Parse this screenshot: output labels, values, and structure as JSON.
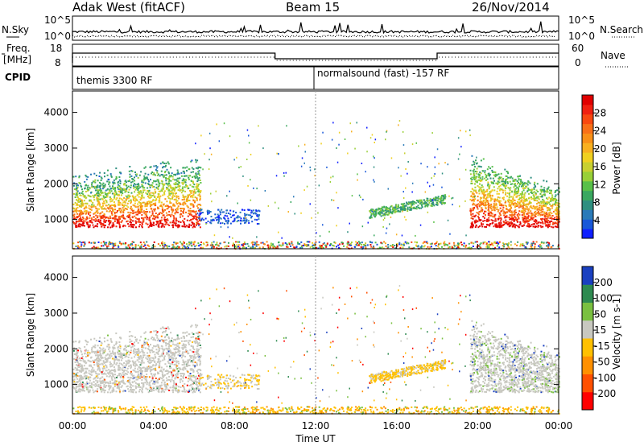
{
  "header": {
    "station": "Adak West (fitACF)",
    "beam": "Beam 15",
    "date": "26/Nov/2014"
  },
  "noise_panel": {
    "left_label": "N.Sky",
    "right_label": "N.Search",
    "ticks": [
      "10^5",
      "10^0"
    ]
  },
  "freq_panel": {
    "left_label_1": "Freq.",
    "left_label_2": "[MHz]",
    "left_ticks": [
      "18",
      "8"
    ],
    "right_label": "Nave",
    "right_ticks": [
      "60",
      "0"
    ]
  },
  "cpid_panel": {
    "label": "CPID",
    "segments": [
      "themis 3300 RF",
      "normalsound (fast) -157 RF"
    ]
  },
  "chart_data": [
    {
      "type": "heatmap",
      "name": "power",
      "ylabel": "Slant Range [km]",
      "xlabel": "",
      "yticks": [
        1000,
        2000,
        3000,
        4000
      ],
      "ylim": [
        180,
        4600
      ],
      "colorbar": {
        "label": "Power [dB]",
        "ticks": [
          "28",
          "24",
          "20",
          "16",
          "12",
          "8",
          "4"
        ],
        "range": [
          0,
          30
        ],
        "colors": [
          "#1020ff",
          "#1858d8",
          "#2a7ab8",
          "#2f8f80",
          "#3aa860",
          "#58c048",
          "#98d038",
          "#c8d030",
          "#f0d020",
          "#f8b020",
          "#f89018",
          "#f87018",
          "#f84810",
          "#f02010",
          "#e00000"
        ]
      }
    },
    {
      "type": "heatmap",
      "name": "velocity",
      "ylabel": "Slant Range [km]",
      "xlabel": "Time UT",
      "xticks": [
        "00:00",
        "04:00",
        "08:00",
        "12:00",
        "16:00",
        "20:00",
        "00:00"
      ],
      "yticks": [
        1000,
        2000,
        3000,
        4000
      ],
      "ylim": [
        180,
        4600
      ],
      "colorbar": {
        "label": "Velocity [m s-1]",
        "ticks": [
          "200",
          "100",
          "50",
          "15",
          "-15",
          "-50",
          "-100",
          "-200"
        ],
        "range": [
          -250,
          250
        ],
        "colors": [
          "#ff0000",
          "#ff5000",
          "#ff9000",
          "#ffc000",
          "#c8c8c0",
          "#7ac040",
          "#2e8a50",
          "#1a40c0"
        ]
      }
    }
  ]
}
